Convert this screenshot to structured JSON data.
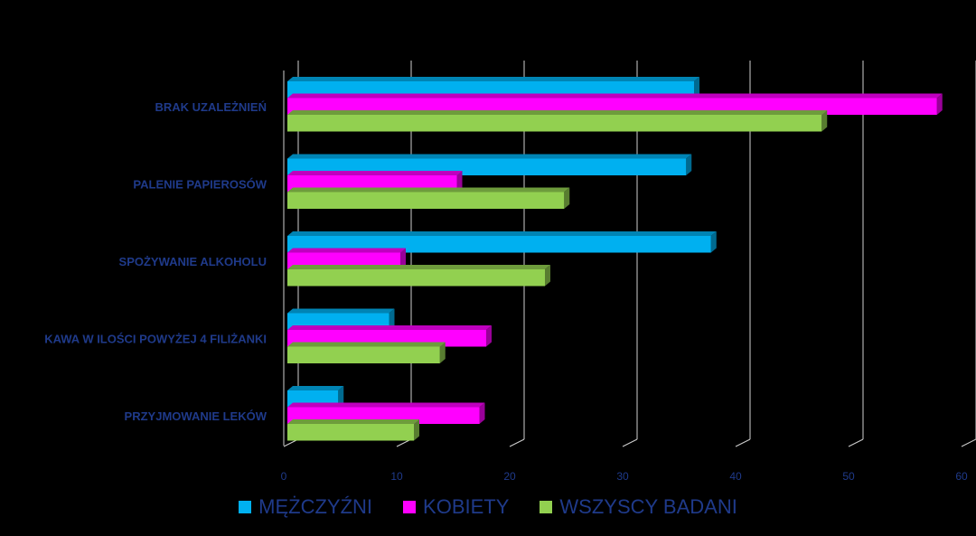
{
  "chart_data": {
    "type": "bar",
    "orientation": "horizontal",
    "title": "",
    "xlabel": "",
    "ylabel": "",
    "xlim": [
      0,
      60
    ],
    "ticks": [
      0,
      10,
      20,
      30,
      40,
      50,
      60
    ],
    "categories": [
      "BRAK UZALEŻNIEŃ",
      "PALENIE PAPIEROSÓW",
      "SPOŻYWANIE ALKOHOLU",
      "KAWA W ILOŚCI POWYŻEJ 4 FILIŻANKI",
      "PRZYJMOWANIE LEKÓW"
    ],
    "series": [
      {
        "name": "MĘŻCZYŹNI",
        "color": "#00b0f0",
        "values": [
          36,
          35.3,
          37.5,
          9,
          4.5
        ]
      },
      {
        "name": "KOBIETY",
        "color": "#ff00ff",
        "values": [
          57.5,
          15,
          10,
          17.6,
          17
        ]
      },
      {
        "name": "WSZYSCY BADANI",
        "color": "#92d050",
        "values": [
          47.3,
          24.5,
          22.8,
          13.5,
          11.2
        ]
      }
    ],
    "grid": true,
    "legend": "bottom",
    "style": "3d"
  }
}
